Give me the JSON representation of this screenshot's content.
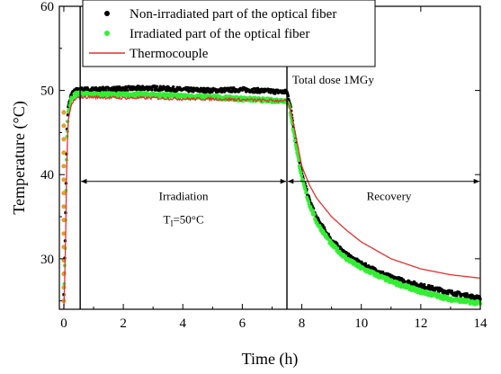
{
  "chart_data": {
    "type": "line",
    "title": "",
    "xlabel": "Time (h)",
    "ylabel": "Temperature (°C)",
    "xlim": [
      -0.15,
      14
    ],
    "ylim": [
      24,
      60
    ],
    "xticks": [
      0,
      2,
      4,
      6,
      8,
      10,
      12,
      14
    ],
    "yticks": [
      30,
      40,
      50,
      60
    ],
    "grid": false,
    "legend_position": "top-center",
    "series": [
      {
        "name": "Non-irradiated part of the optical fiber",
        "style": "scatter",
        "color": "#000000",
        "x": [
          0.0,
          0.05,
          0.1,
          0.15,
          0.25,
          0.4,
          0.6,
          1.0,
          2.0,
          3.0,
          4.0,
          5.0,
          6.0,
          7.0,
          7.5,
          7.6,
          7.75,
          8.0,
          8.25,
          8.5,
          9.0,
          9.5,
          10.0,
          11.0,
          12.0,
          13.0,
          14.0
        ],
        "y": [
          26.0,
          33.0,
          45.0,
          48.0,
          49.5,
          50.0,
          50.1,
          50.1,
          50.2,
          50.3,
          50.1,
          50.0,
          50.1,
          49.9,
          49.8,
          48.5,
          45.0,
          40.0,
          37.0,
          34.8,
          32.2,
          30.5,
          29.4,
          27.8,
          26.8,
          26.0,
          25.3
        ]
      },
      {
        "name": "Irradiated part of the optical fiber",
        "style": "scatter",
        "color": "#33ee33",
        "x": [
          0.0,
          0.05,
          0.1,
          0.15,
          0.25,
          0.4,
          0.6,
          1.0,
          2.0,
          3.0,
          4.0,
          5.0,
          6.0,
          7.0,
          7.5,
          7.6,
          7.75,
          8.0,
          8.25,
          8.5,
          9.0,
          9.5,
          10.0,
          11.0,
          12.0,
          13.0,
          14.0
        ],
        "y": [
          25.0,
          32.0,
          44.0,
          47.5,
          49.0,
          49.6,
          49.6,
          49.5,
          49.5,
          49.5,
          49.3,
          49.2,
          49.0,
          48.8,
          48.8,
          47.8,
          44.5,
          39.5,
          36.5,
          34.3,
          31.7,
          30.0,
          28.9,
          27.3,
          26.1,
          25.2,
          24.7
        ]
      },
      {
        "name": "Thermocouple",
        "style": "line",
        "color": "#e03030",
        "x": [
          0.0,
          0.05,
          0.1,
          0.15,
          0.25,
          0.4,
          0.6,
          1.0,
          2.0,
          3.0,
          4.0,
          5.0,
          6.0,
          7.0,
          7.5,
          7.6,
          7.75,
          8.0,
          8.25,
          8.5,
          9.0,
          9.5,
          10.0,
          11.0,
          12.0,
          13.0,
          14.0
        ],
        "y": [
          24.0,
          30.0,
          42.0,
          46.5,
          48.3,
          49.0,
          49.2,
          49.2,
          49.1,
          49.1,
          49.0,
          49.0,
          48.9,
          48.8,
          48.8,
          48.0,
          45.5,
          41.0,
          38.8,
          37.2,
          35.0,
          33.4,
          32.0,
          30.0,
          28.8,
          28.1,
          27.7
        ]
      }
    ],
    "vertical_lines": [
      0.55,
      7.5
    ],
    "annotations": {
      "total_dose": "Total dose 1MGy",
      "irradiation": "Irradiation",
      "ti_main": "T",
      "ti_sub": "I",
      "ti_rest": "=50°C",
      "recovery": "Recovery"
    },
    "arrows": [
      {
        "from": 0.55,
        "to": 7.5,
        "y": 39.2
      },
      {
        "from": 7.5,
        "to": 14.0,
        "y": 39.2
      }
    ]
  }
}
